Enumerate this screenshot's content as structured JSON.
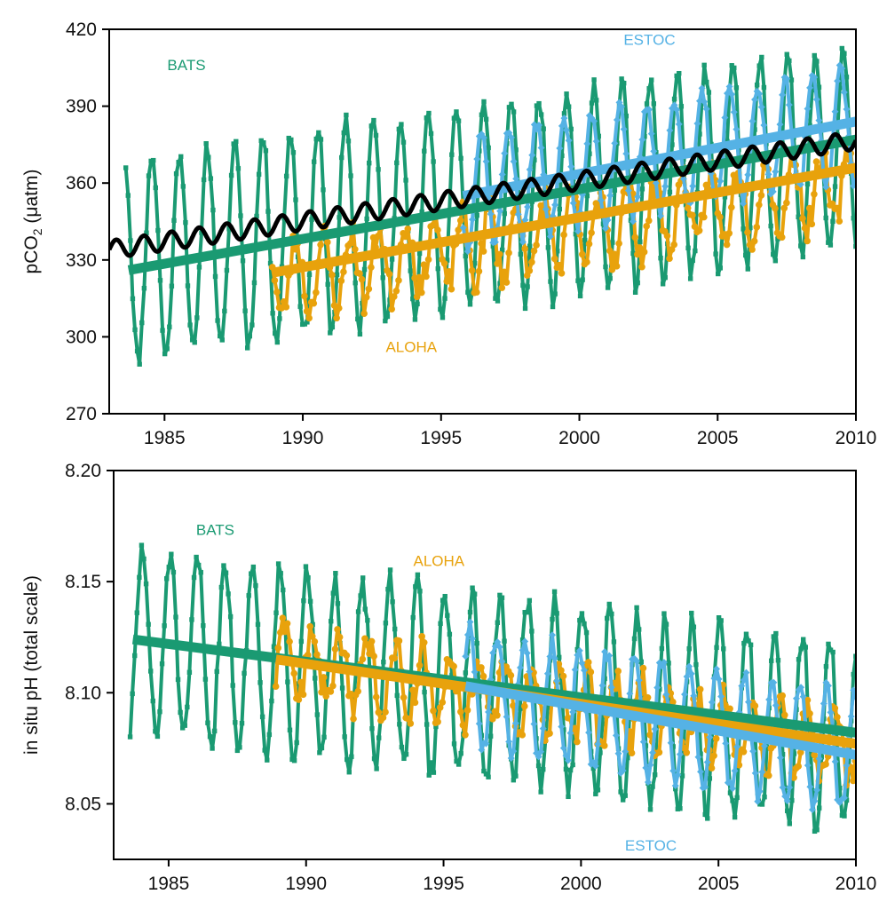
{
  "colors": {
    "BATS": "#1a9a72",
    "ALOHA": "#e8a20c",
    "ESTOC": "#55b2e5",
    "trend_co2": "#000000",
    "axis": "#000000"
  },
  "chart_data": [
    {
      "type": "line",
      "ylabel_main": "pCO",
      "ylabel_sub": "2",
      "ylabel_unit": " (μatm)",
      "xlim": [
        1983,
        2010
      ],
      "ylim": [
        270,
        420
      ],
      "xticks": [
        1985,
        1990,
        1995,
        2000,
        2005,
        2010
      ],
      "yticks": [
        270,
        300,
        330,
        360,
        390,
        420
      ],
      "annotations": [
        {
          "text": "BATS",
          "series": "BATS",
          "x": 1985.1,
          "y": 404
        },
        {
          "text": "ESTOC",
          "series": "ESTOC",
          "x": 2001.6,
          "y": 414
        },
        {
          "text": "ALOHA",
          "series": "ALOHA",
          "x": 1993.0,
          "y": 294
        }
      ],
      "series": [
        {
          "name": "BATS",
          "type": "seasonal",
          "start": 1983.6,
          "end": 2010.0,
          "step": 0.083,
          "base0": 330,
          "rate": 1.65,
          "amp": 40,
          "phase": 0.3,
          "noise": 4,
          "seed": 11,
          "trend": [
            [
              1983.7,
              326
            ],
            [
              2010.0,
              377
            ]
          ]
        },
        {
          "name": "ALOHA",
          "type": "seasonal",
          "start": 1988.9,
          "end": 2010.0,
          "step": 0.083,
          "base0": 322,
          "rate": 1.8,
          "amp": 14,
          "phase": 0.5,
          "noise": 6,
          "seed": 23,
          "trend": [
            [
              1988.9,
              325
            ],
            [
              2010.0,
              366
            ]
          ]
        },
        {
          "name": "ESTOC",
          "type": "seasonal",
          "start": 1995.8,
          "end": 2010.0,
          "step": 0.083,
          "base0": 357,
          "rate": 1.85,
          "amp": 22,
          "phase": 0.2,
          "noise": 3,
          "seed": 37,
          "trend": [
            [
              1995.8,
              355
            ],
            [
              2010.0,
              384
            ]
          ]
        },
        {
          "name": "atmosphere",
          "type": "curve",
          "start": 1983.0,
          "end": 2010.0,
          "step": 0.02,
          "base0": 334,
          "rate": 1.58,
          "amp": 3.5,
          "phase": 0.0
        }
      ]
    },
    {
      "type": "line",
      "ylabel": "in situ pH (total scale)",
      "xlim": [
        1983,
        2010
      ],
      "ylim": [
        8.025,
        8.2
      ],
      "xticks": [
        1985,
        1990,
        1995,
        2000,
        2005,
        2010
      ],
      "yticks": [
        8.05,
        8.1,
        8.15,
        8.2
      ],
      "ytick_labels": [
        "8.05",
        "8.10",
        "8.15",
        "8.20"
      ],
      "annotations": [
        {
          "text": "BATS",
          "series": "BATS",
          "x": 1986.0,
          "y": 8.171
        },
        {
          "text": "ALOHA",
          "series": "ALOHA",
          "x": 1993.9,
          "y": 8.157
        },
        {
          "text": "ESTOC",
          "series": "ESTOC",
          "x": 2001.6,
          "y": 8.029
        }
      ],
      "series": [
        {
          "name": "BATS",
          "type": "seasonal",
          "start": 1983.6,
          "end": 2010.0,
          "step": 0.083,
          "base0": 8.123,
          "rate": -0.0016,
          "amp": 0.042,
          "phase": 0.8,
          "noise": 0.006,
          "seed": 51,
          "trend": [
            [
              1983.7,
              8.124
            ],
            [
              2010.0,
              8.082
            ]
          ]
        },
        {
          "name": "ALOHA",
          "type": "seasonal",
          "start": 1988.9,
          "end": 2010.0,
          "step": 0.083,
          "base0": 8.115,
          "rate": -0.0019,
          "amp": 0.015,
          "phase": 1.0,
          "noise": 0.007,
          "seed": 63,
          "trend": [
            [
              1988.9,
              8.115
            ],
            [
              2010.0,
              8.077
            ]
          ]
        },
        {
          "name": "ESTOC",
          "type": "seasonal",
          "start": 1995.8,
          "end": 2010.0,
          "step": 0.083,
          "base0": 8.103,
          "rate": -0.0021,
          "amp": 0.026,
          "phase": 0.7,
          "noise": 0.004,
          "seed": 79,
          "trend": [
            [
              1995.8,
              8.103
            ],
            [
              2010.0,
              8.072
            ]
          ]
        }
      ]
    }
  ]
}
